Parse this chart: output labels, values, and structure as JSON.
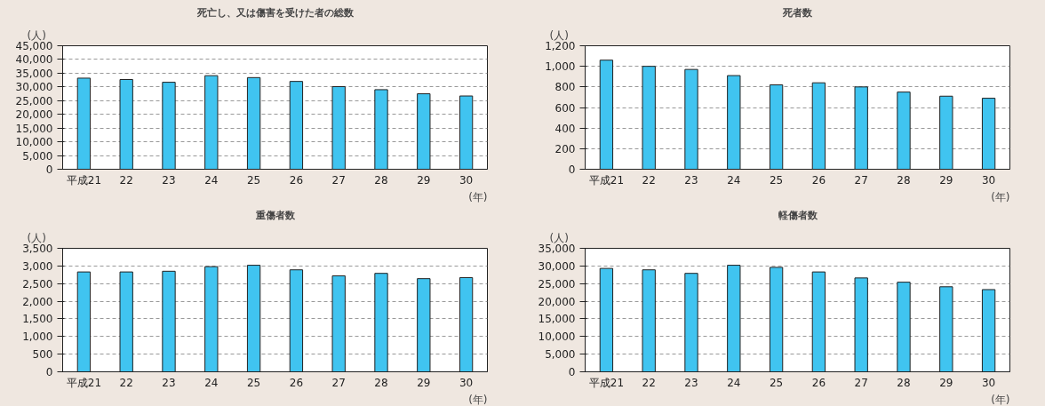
{
  "chart_data": [
    {
      "type": "bar",
      "title": "死亡し、又は傷害を受けた者の総数",
      "xlabel": "(年)",
      "ylabel": "(人)",
      "categories": [
        "平成21",
        "22",
        "23",
        "24",
        "25",
        "26",
        "27",
        "28",
        "29",
        "30"
      ],
      "color": "#40c4f0",
      "values": [
        33200,
        32700,
        31700,
        34100,
        33400,
        32000,
        30100,
        29000,
        27500,
        26700
      ],
      "ylim": [
        0,
        45000
      ],
      "yticks": [
        0,
        {
          "value": 5000,
          "label": "5,000"
        },
        {
          "value": 10000,
          "label": "10,000"
        },
        {
          "value": 15000,
          "label": "15,000"
        },
        {
          "value": 20000,
          "label": "20,000"
        },
        {
          "value": 25000,
          "label": "25,000"
        },
        {
          "value": 30000,
          "label": "30,000"
        },
        {
          "value": 35000,
          "label": "35,000"
        },
        {
          "value": 40000,
          "label": "40,000"
        },
        {
          "value": 45000,
          "label": "45,000"
        }
      ],
      "grid": "y"
    },
    {
      "type": "bar",
      "title": "死者数",
      "xlabel": "(年)",
      "ylabel": "(人)",
      "categories": [
        "平成21",
        "22",
        "23",
        "24",
        "25",
        "26",
        "27",
        "28",
        "29",
        "30"
      ],
      "color": "#40c4f0",
      "values": [
        1060,
        1000,
        970,
        910,
        820,
        840,
        800,
        750,
        710,
        690
      ],
      "ylim": [
        0,
        1200
      ],
      "yticks": [
        0,
        200,
        400,
        600,
        800,
        {
          "value": 1000,
          "label": "1,000"
        },
        {
          "value": 1200,
          "label": "1,200"
        }
      ],
      "grid": "y"
    },
    {
      "type": "bar",
      "title": "重傷者数",
      "xlabel": "(年)",
      "ylabel": "(人)",
      "categories": [
        "平成21",
        "22",
        "23",
        "24",
        "25",
        "26",
        "27",
        "28",
        "29",
        "30"
      ],
      "color": "#40c4f0",
      "values": [
        2830,
        2830,
        2850,
        2980,
        3020,
        2890,
        2720,
        2790,
        2640,
        2670
      ],
      "ylim": [
        0,
        3500
      ],
      "yticks": [
        0,
        500,
        {
          "value": 1000,
          "label": "1,000"
        },
        {
          "value": 1500,
          "label": "1,500"
        },
        {
          "value": 2000,
          "label": "2,000"
        },
        {
          "value": 2500,
          "label": "2,500"
        },
        {
          "value": 3000,
          "label": "3,000"
        },
        {
          "value": 3500,
          "label": "3,500"
        }
      ],
      "grid": "y"
    },
    {
      "type": "bar",
      "title": "軽傷者数",
      "xlabel": "(年)",
      "ylabel": "(人)",
      "categories": [
        "平成21",
        "22",
        "23",
        "24",
        "25",
        "26",
        "27",
        "28",
        "29",
        "30"
      ],
      "color": "#40c4f0",
      "values": [
        29300,
        28900,
        27900,
        30200,
        29600,
        28300,
        26600,
        25400,
        24100,
        23300
      ],
      "ylim": [
        0,
        35000
      ],
      "yticks": [
        0,
        {
          "value": 5000,
          "label": "5,000"
        },
        {
          "value": 10000,
          "label": "10,000"
        },
        {
          "value": 15000,
          "label": "15,000"
        },
        {
          "value": 20000,
          "label": "20,000"
        },
        {
          "value": 25000,
          "label": "25,000"
        },
        {
          "value": 30000,
          "label": "30,000"
        },
        {
          "value": 35000,
          "label": "35,000"
        }
      ],
      "grid": "y"
    }
  ]
}
